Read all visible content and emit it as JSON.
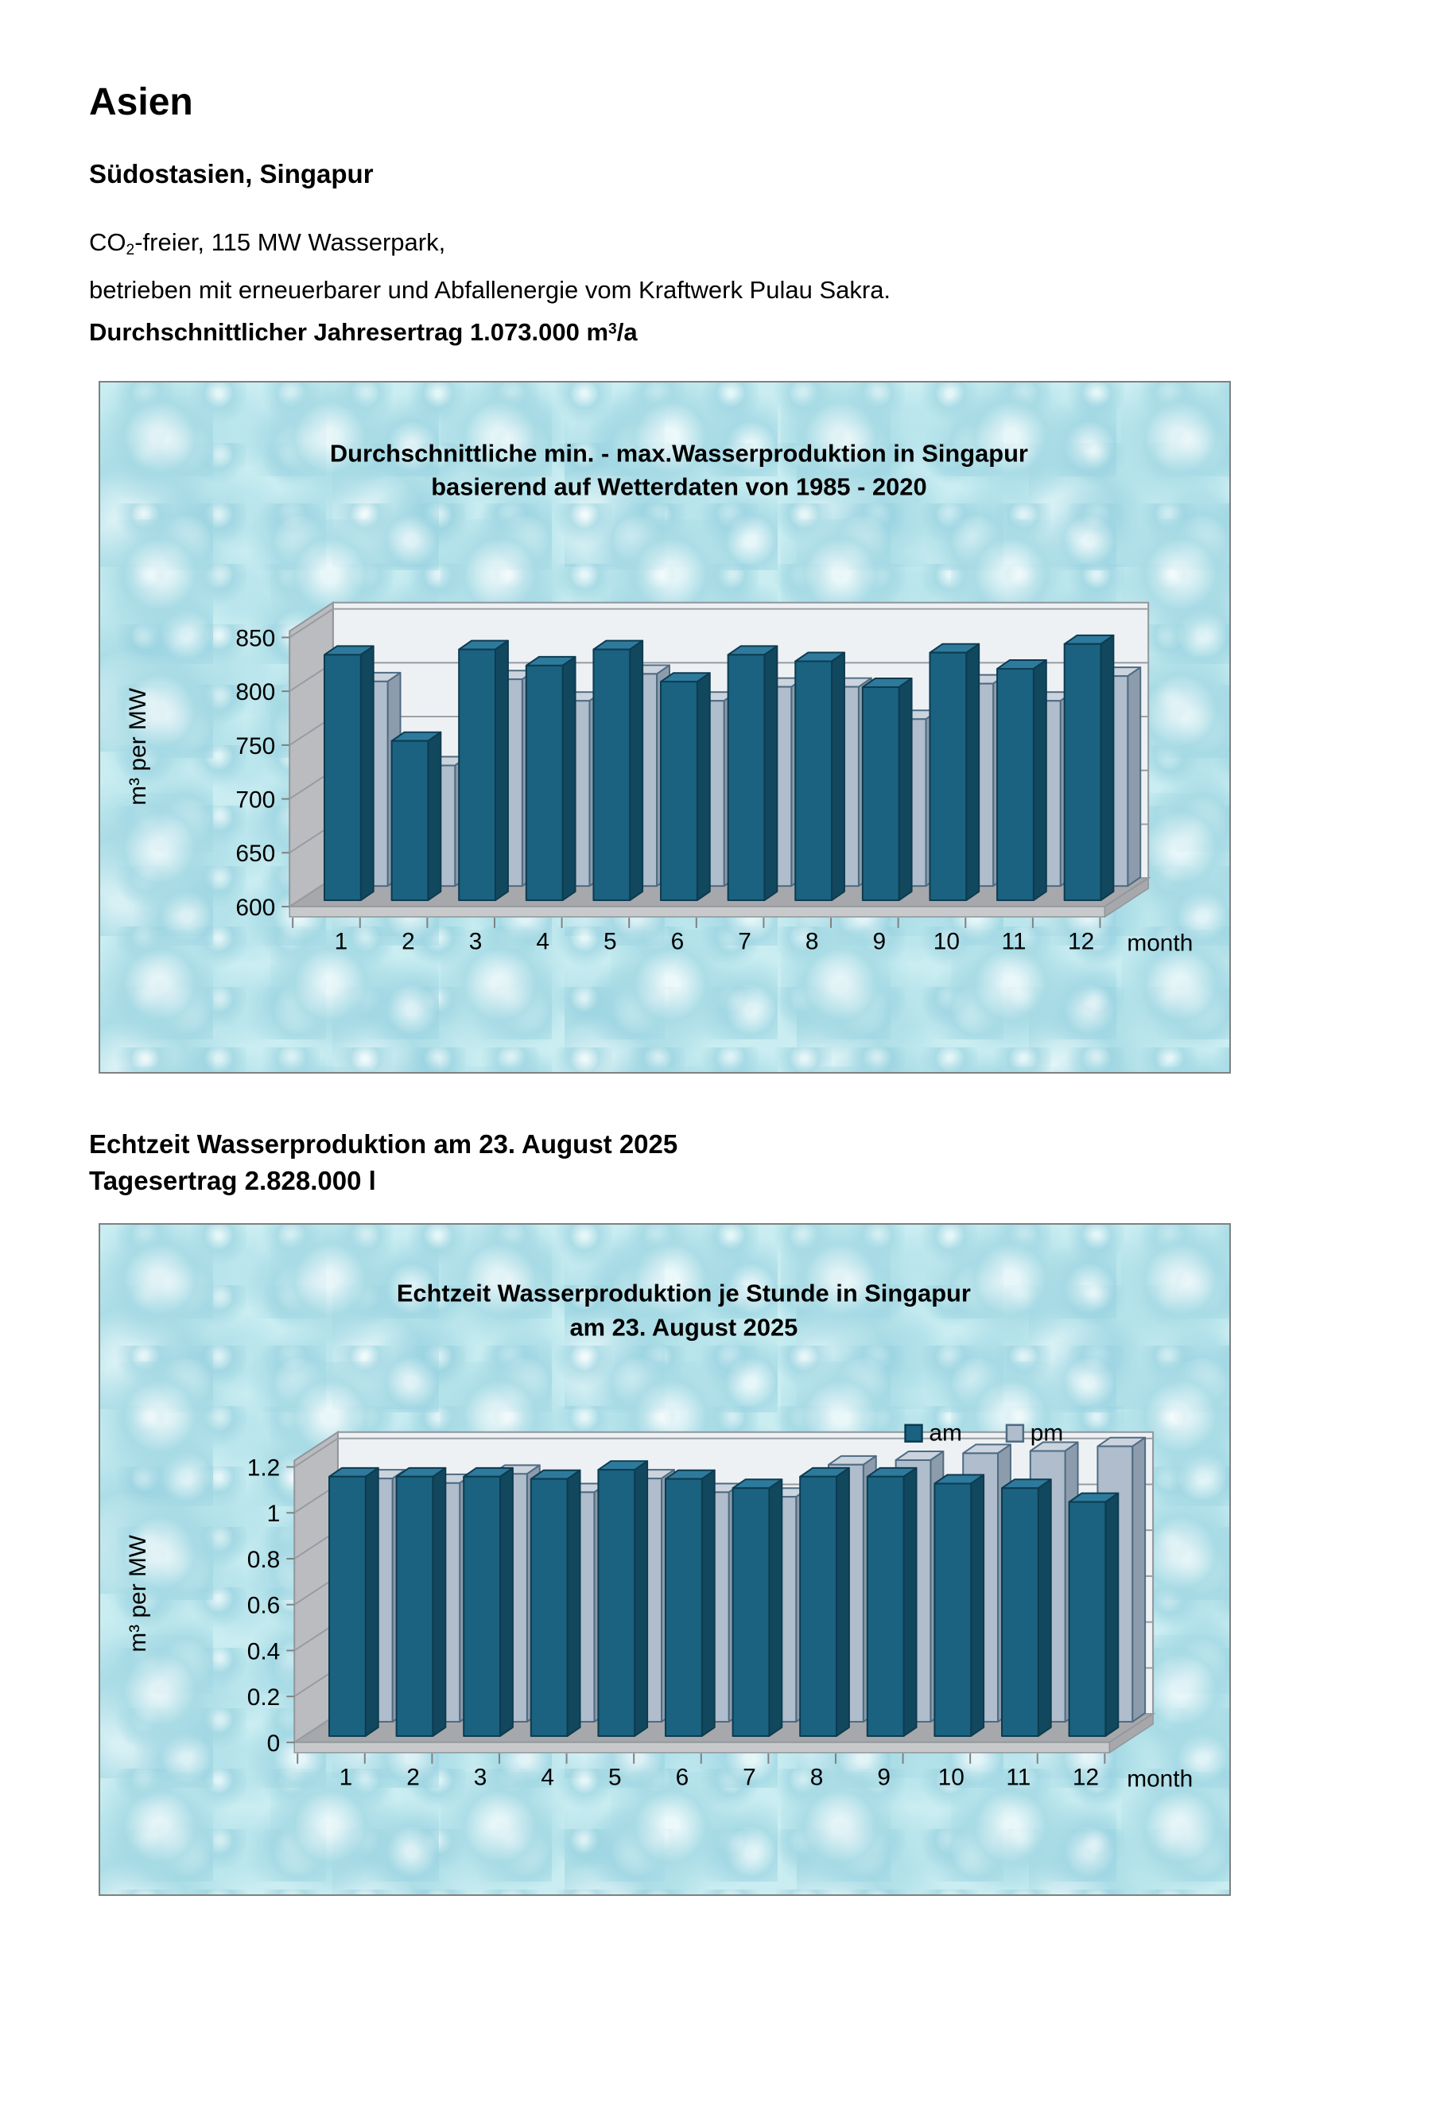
{
  "page": {
    "title": "Asien",
    "subtitle": "Südostasien, Singapur",
    "intro": {
      "l1a": "CO",
      "l1sub": "2",
      "l1b": "-freier, 115 MW Wasserpark,",
      "l2": "betrieben mit erneuerbarer und Abfallenergie vom Kraftwerk Pulau Sakra.",
      "l3a": "Durchschnittlicher Jahresertrag 1.073.000 m",
      "l3sup": "3",
      "l3b": "/a"
    },
    "section2_line1": "Echtzeit Wasserproduktion am 23. August 2025",
    "section2_line2": "Tagesertrag 2.828.000 l"
  },
  "colors": {
    "page_background": "#ffffff",
    "panel_background": "#c9edf1",
    "panel_border": "#7e8183",
    "back_wall": "#eef1f4",
    "back_wall_edge": "#90969c",
    "side_wall": "#bbbcbf",
    "floor": "#a7a8ab",
    "floor_front": "#c8c9cb",
    "gridline": "#979ca2",
    "bar_dark": {
      "front": "#1a6280",
      "side": "#12485e",
      "top": "#2e7a9c",
      "stroke": "#0c3b50"
    },
    "bar_light": {
      "front": "#afbdcc",
      "side": "#8d9cac",
      "top": "#cbd4de",
      "stroke": "#4e6b82"
    },
    "text": "#000000"
  },
  "chart_data": [
    {
      "type": "bar",
      "variant": "3d-column-two-series",
      "title_line1": "Durchschnittliche min. - max.Wasserproduktion in Singapur",
      "title_line2": "basierend auf Wetterdaten von 1985 - 2020",
      "ylabel": "m³ per MW",
      "xlabel": "month",
      "categories": [
        "1",
        "2",
        "3",
        "4",
        "5",
        "6",
        "7",
        "8",
        "9",
        "10",
        "11",
        "12"
      ],
      "yticks": [
        600,
        650,
        700,
        750,
        800,
        850
      ],
      "ytick_labels": [
        "600",
        "650",
        "700",
        "750",
        "800",
        "850"
      ],
      "ylim": [
        600,
        860
      ],
      "grid": true,
      "legend_visible": false,
      "series": [
        {
          "name": "max",
          "role": "dark-front",
          "values": [
            828,
            748,
            833,
            818,
            833,
            803,
            828,
            822,
            798,
            830,
            815,
            838
          ]
        },
        {
          "name": "min",
          "role": "light-back",
          "values": [
            790,
            712,
            792,
            772,
            797,
            772,
            785,
            785,
            755,
            788,
            772,
            795
          ]
        }
      ]
    },
    {
      "type": "bar",
      "variant": "3d-column-two-series",
      "title_line1": "Echtzeit Wasserproduktion je Stunde in Singapur",
      "title_line2": "am 23. August 2025",
      "ylabel": "m³ per MW",
      "xlabel": "month",
      "categories": [
        "1",
        "2",
        "3",
        "4",
        "5",
        "6",
        "7",
        "8",
        "9",
        "10",
        "11",
        "12"
      ],
      "yticks": [
        0,
        0.2,
        0.4,
        0.6,
        0.8,
        1,
        1.2
      ],
      "ytick_labels": [
        "0",
        "0.2",
        "0.4",
        "0.6",
        "0.8",
        "1",
        "1.2"
      ],
      "ylim": [
        0,
        1.25
      ],
      "grid": true,
      "legend_visible": true,
      "legend_position": "top-right",
      "series": [
        {
          "name": "am",
          "role": "dark-front",
          "values": [
            1.13,
            1.13,
            1.13,
            1.12,
            1.16,
            1.12,
            1.08,
            1.13,
            1.13,
            1.1,
            1.08,
            1.02
          ]
        },
        {
          "name": "pm",
          "role": "light-back",
          "values": [
            1.06,
            1.04,
            1.08,
            1.0,
            1.06,
            1.0,
            0.98,
            1.12,
            1.14,
            1.17,
            1.18,
            1.2
          ]
        }
      ]
    }
  ]
}
